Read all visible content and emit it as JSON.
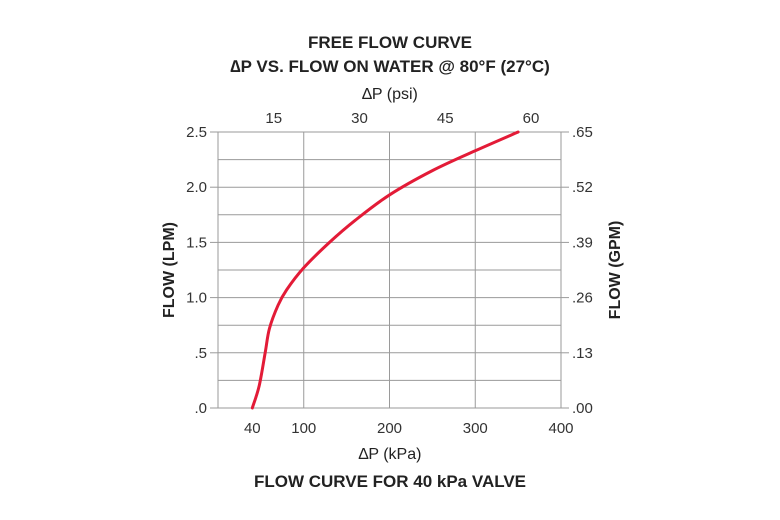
{
  "chart_data": {
    "type": "line",
    "title_lines": [
      "FREE FLOW CURVE",
      "∆P VS. FLOW ON WATER @ 80°F (27°C)"
    ],
    "top_axis": {
      "label": "∆P (psi)",
      "ticks": [
        {
          "value": 100,
          "label": "15"
        },
        {
          "value": 200,
          "label": "30"
        },
        {
          "value": 300,
          "label": "45"
        },
        {
          "value": 400,
          "label": "60"
        }
      ]
    },
    "bottom_axis": {
      "label": "∆P (kPa)",
      "range": [
        0,
        400
      ],
      "ticks": [
        {
          "value": 40,
          "label": "40"
        },
        {
          "value": 100,
          "label": "100"
        },
        {
          "value": 200,
          "label": "200"
        },
        {
          "value": 300,
          "label": "300"
        },
        {
          "value": 400,
          "label": "400"
        }
      ],
      "grid_at": [
        100,
        200,
        300
      ]
    },
    "left_axis": {
      "label": "FLOW (LPM)",
      "range": [
        0,
        2.5
      ],
      "ticks": [
        {
          "value": 0,
          "label": ".0"
        },
        {
          "value": 0.5,
          "label": ".5"
        },
        {
          "value": 1.0,
          "label": "1.0"
        },
        {
          "value": 1.5,
          "label": "1.5"
        },
        {
          "value": 2.0,
          "label": "2.0"
        },
        {
          "value": 2.5,
          "label": "2.5"
        }
      ]
    },
    "right_axis": {
      "label": "FLOW (GPM)",
      "ticks": [
        {
          "value": 0,
          "label": ".00"
        },
        {
          "value": 0.5,
          "label": ".13"
        },
        {
          "value": 1.0,
          "label": ".26"
        },
        {
          "value": 1.5,
          "label": ".39"
        },
        {
          "value": 2.0,
          "label": ".52"
        },
        {
          "value": 2.5,
          "label": ".65"
        }
      ]
    },
    "minor_grid_y": [
      0.25,
      0.75,
      1.25,
      1.75,
      2.25
    ],
    "grid": true,
    "series": [
      {
        "color": "#e31b37",
        "x": [
          40,
          48,
          55,
          60,
          70,
          80,
          100,
          130,
          160,
          200,
          250,
          300,
          350
        ],
        "y": [
          0,
          0.2,
          0.5,
          0.72,
          0.93,
          1.07,
          1.27,
          1.5,
          1.7,
          1.93,
          2.15,
          2.33,
          2.5
        ]
      }
    ],
    "footer": "FLOW CURVE FOR 40 kPa VALVE"
  }
}
